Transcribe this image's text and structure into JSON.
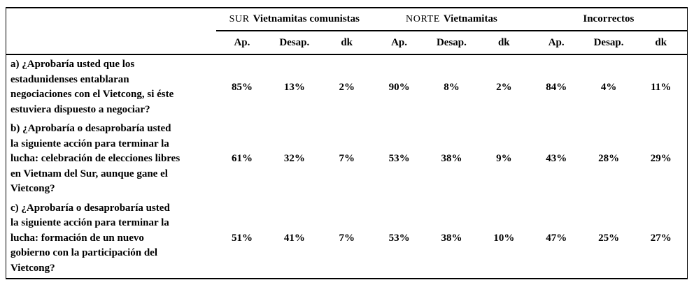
{
  "page": {
    "background": "#ffffff",
    "text_color": "#000000"
  },
  "table": {
    "col_groups": [
      {
        "prefix": "SUR",
        "label": "Vietnamitas comunistas"
      },
      {
        "prefix": "NORTE",
        "label": "Vietnamitas"
      },
      {
        "prefix": "",
        "label": "Incorrectos"
      }
    ],
    "subheaders": [
      "Ap.",
      "Desap.",
      "dk",
      "Ap.",
      "Desap.",
      "dk",
      "Ap.",
      "Desap.",
      "dk"
    ],
    "rows": [
      {
        "question": "a) ¿Aprobaría usted que los\nestadunidenses entablaran\nnegociaciones con el Vietcong, si éste\nestuviera dispuesto a negociar?",
        "values": [
          "85%",
          "13%",
          "2%",
          "90%",
          "8%",
          "2%",
          "84%",
          "4%",
          "11%"
        ]
      },
      {
        "question": "b) ¿Aprobaría o desaprobaría usted\nla siguiente acción para terminar la\nlucha: celebración de elecciones libres\nen Vietnam del Sur, aunque gane el\nVietcong?",
        "values": [
          "61%",
          "32%",
          "7%",
          "53%",
          "38%",
          "9%",
          "43%",
          "28%",
          "29%"
        ]
      },
      {
        "question": "c) ¿Aprobaría o desaprobaría usted\nla siguiente acción para terminar la\nlucha: formación de un nuevo\ngobierno con la participación del\nVietcong?",
        "values": [
          "51%",
          "41%",
          "7%",
          "53%",
          "38%",
          "10%",
          "47%",
          "25%",
          "27%"
        ]
      }
    ]
  }
}
